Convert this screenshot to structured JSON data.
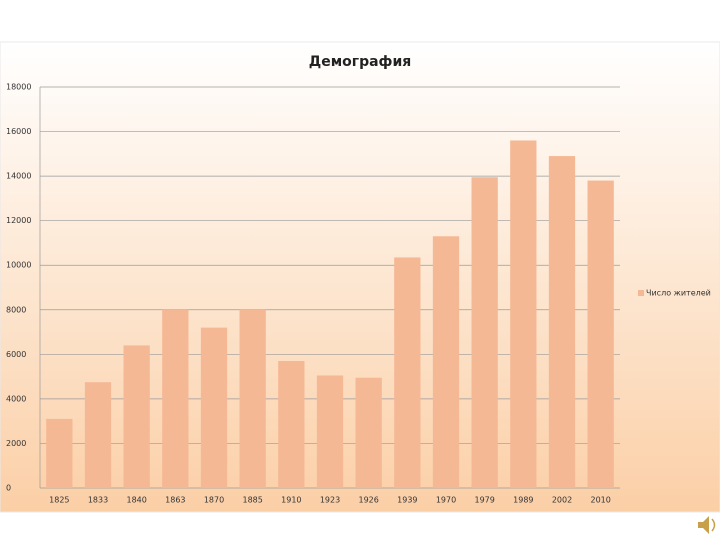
{
  "chart_data": {
    "type": "bar",
    "title": "Демография",
    "categories": [
      "1825",
      "1833",
      "1840",
      "1863",
      "1870",
      "1885",
      "1910",
      "1923",
      "1926",
      "1939",
      "1970",
      "1979",
      "1989",
      "2002",
      "2010"
    ],
    "series": [
      {
        "name": "Число жителей",
        "color": "#f5b895",
        "values": [
          3100,
          4750,
          6400,
          8000,
          7200,
          8000,
          5700,
          5050,
          4950,
          10350,
          11300,
          13950,
          15600,
          14900,
          13800
        ]
      }
    ],
    "ylim": [
      0,
      18000
    ],
    "yticks": [
      0,
      2000,
      4000,
      6000,
      8000,
      10000,
      12000,
      14000,
      16000,
      18000
    ],
    "grid": true,
    "legend": "right"
  }
}
